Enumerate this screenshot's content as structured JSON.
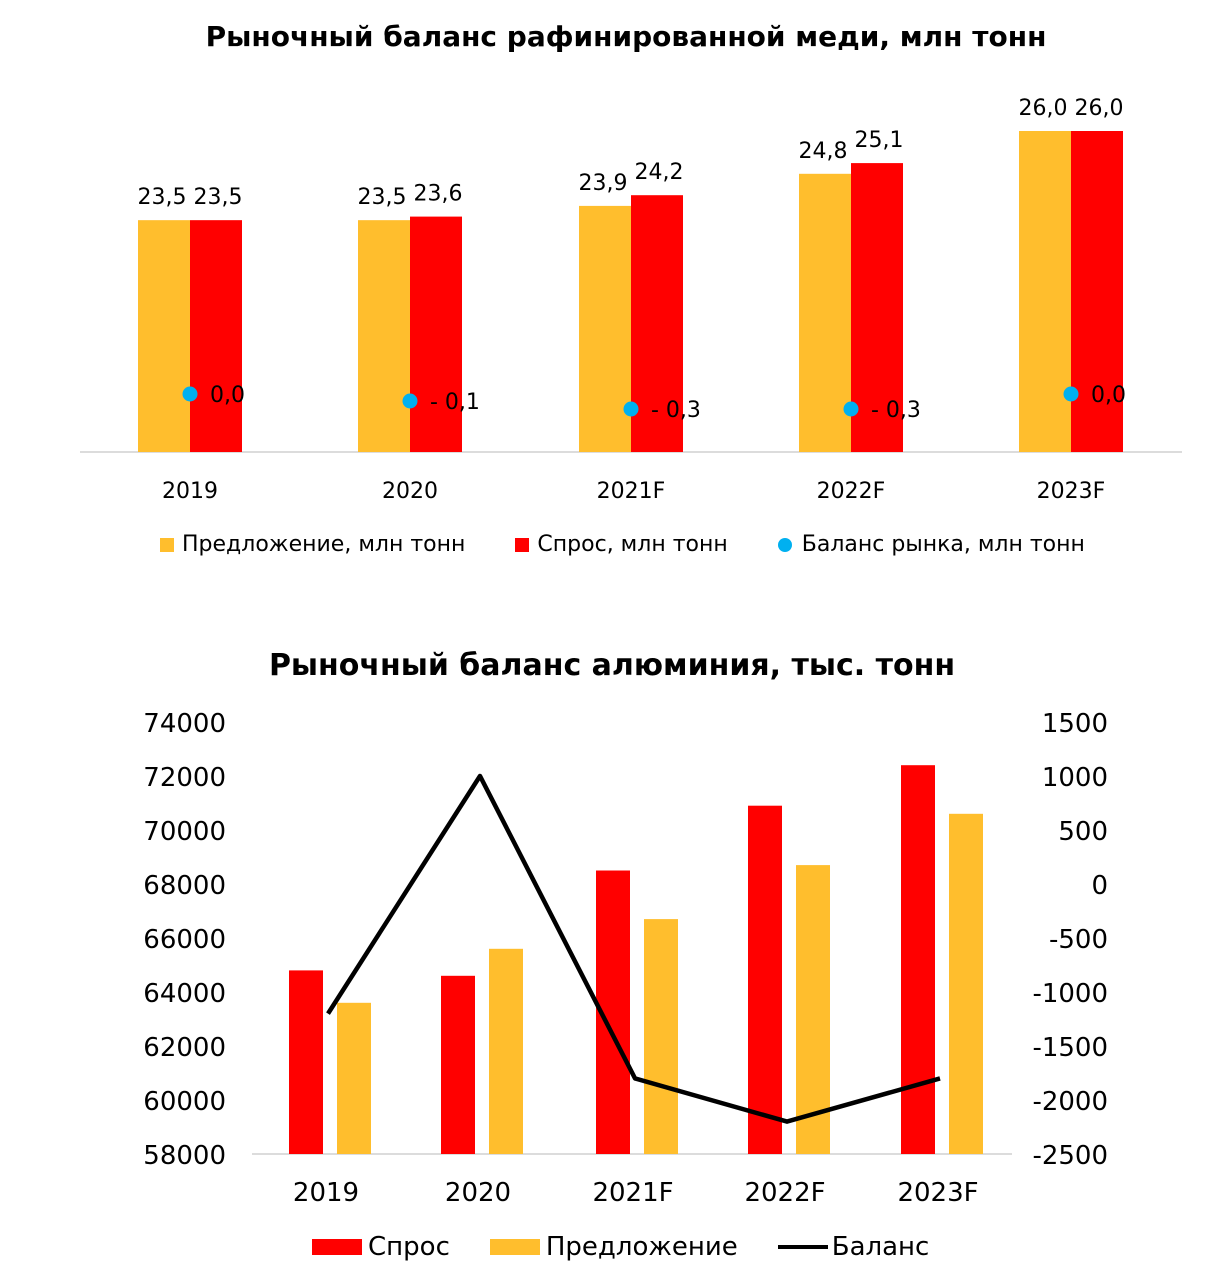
{
  "colors": {
    "supply": "#FFBE2D",
    "demand": "#FF0000",
    "balance_dot": "#00B0F0",
    "balance_line": "#000000"
  },
  "chart_data": [
    {
      "type": "bar",
      "title": "Рыночный баланс рафинированной меди, млн тонн",
      "categories": [
        "2019",
        "2020",
        "2021F",
        "2022F",
        "2023F"
      ],
      "series": [
        {
          "name": "Предложение, млн тонн",
          "values": [
            23.5,
            23.5,
            23.9,
            24.8,
            26.0
          ],
          "labels": [
            "23,5",
            "23,5",
            "23,9",
            "24,8",
            "26,0"
          ]
        },
        {
          "name": "Спрос, млн тонн",
          "values": [
            23.5,
            23.6,
            24.2,
            25.1,
            26.0
          ],
          "labels": [
            "23,5",
            "23,6",
            "24,2",
            "25,1",
            "26,0"
          ]
        },
        {
          "name": "Баланс рынка, млн тонн",
          "type": "scatter",
          "values": [
            0.0,
            -0.1,
            -0.3,
            -0.3,
            0.0
          ],
          "labels": [
            "0,0",
            "- 0,1",
            "- 0,3",
            "- 0,3",
            "0,0"
          ]
        }
      ],
      "legend": "bottom"
    },
    {
      "type": "bar",
      "title": "Рыночный баланс алюминия, тыс. тонн",
      "categories": [
        "2019",
        "2020",
        "2021F",
        "2022F",
        "2023F"
      ],
      "y_left": {
        "ylim": [
          58000,
          74000
        ],
        "ticks": [
          "58000",
          "60000",
          "62000",
          "64000",
          "66000",
          "68000",
          "70000",
          "72000",
          "74000"
        ]
      },
      "y_right": {
        "ylim": [
          -2500,
          1500
        ],
        "ticks": [
          "-2500",
          "-2000",
          "-1500",
          "-1000",
          "-500",
          "0",
          "500",
          "1000",
          "1500"
        ]
      },
      "series": [
        {
          "name": "Спрос",
          "axis": "left",
          "values": [
            64800,
            64600,
            68500,
            70900,
            72400
          ]
        },
        {
          "name": "Предложение",
          "axis": "left",
          "values": [
            63600,
            65600,
            66700,
            68700,
            70600
          ]
        },
        {
          "name": "Баланс",
          "type": "line",
          "axis": "right",
          "values": [
            -1200,
            1000,
            -1800,
            -2200,
            -1800
          ]
        }
      ],
      "legend": "bottom"
    }
  ]
}
